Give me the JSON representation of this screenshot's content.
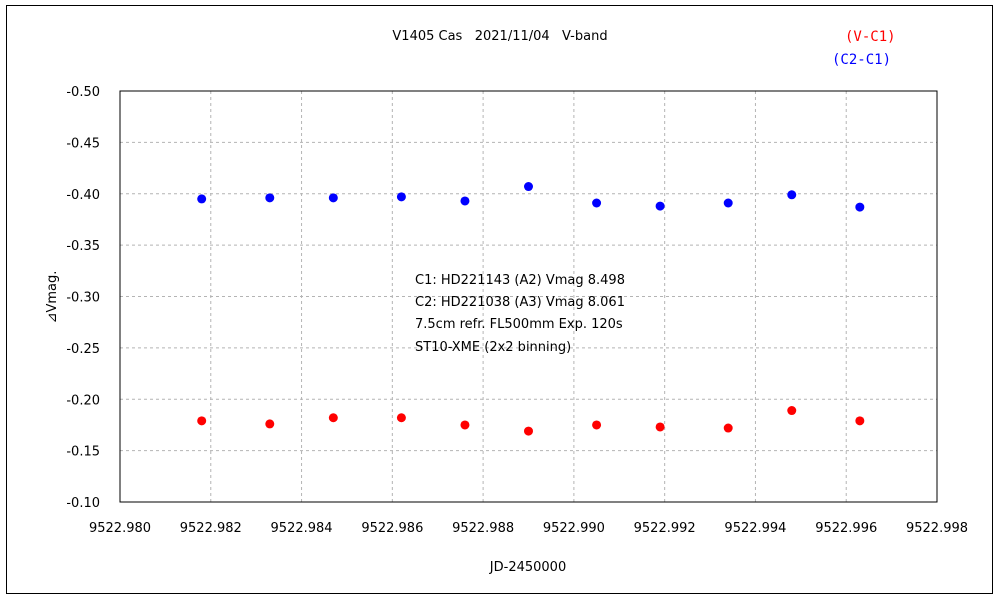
{
  "chart_data": {
    "type": "scatter",
    "title": "V1405 Cas   2021/11/04   V-band",
    "xlabel": "JD-2450000",
    "ylabel": "⊿Vmag.",
    "xlim": [
      9522.98,
      9522.998
    ],
    "ylim": [
      -0.1,
      -0.5
    ],
    "y_inverted": true,
    "grid": true,
    "x_ticks": [
      "9522.980",
      "9522.982",
      "9522.984",
      "9522.986",
      "9522.988",
      "9522.990",
      "9522.992",
      "9522.994",
      "9522.996",
      "9522.998"
    ],
    "x_tick_values": [
      9522.98,
      9522.982,
      9522.984,
      9522.986,
      9522.988,
      9522.99,
      9522.992,
      9522.994,
      9522.996,
      9522.998
    ],
    "y_ticks": [
      "-0.50",
      "-0.45",
      "-0.40",
      "-0.35",
      "-0.30",
      "-0.25",
      "-0.20",
      "-0.15",
      "-0.10"
    ],
    "y_tick_values": [
      -0.5,
      -0.45,
      -0.4,
      -0.35,
      -0.3,
      -0.25,
      -0.2,
      -0.15,
      -0.1
    ],
    "x": [
      9522.9818,
      9522.9833,
      9522.9847,
      9522.9862,
      9522.9876,
      9522.989,
      9522.9905,
      9522.9919,
      9522.9934,
      9522.9948,
      9522.9963
    ],
    "series": [
      {
        "name": "(C2-C1)",
        "color": "#0000ff",
        "values": [
          -0.395,
          -0.396,
          -0.396,
          -0.397,
          -0.393,
          -0.407,
          -0.391,
          -0.388,
          -0.391,
          -0.399,
          -0.387
        ]
      },
      {
        "name": "(V-C1)",
        "color": "#ff0000",
        "values": [
          -0.179,
          -0.176,
          -0.182,
          -0.182,
          -0.175,
          -0.169,
          -0.175,
          -0.173,
          -0.172,
          -0.189,
          -0.179
        ]
      }
    ],
    "legend_placement": "top-right",
    "annotations": [
      "C1: HD221143 (A2) Vmag 8.498",
      "C2: HD221038 (A3) Vmag 8.061",
      "7.5cm refr. FL500mm Exp. 120s",
      "ST10-XME (2x2 binning)"
    ]
  }
}
